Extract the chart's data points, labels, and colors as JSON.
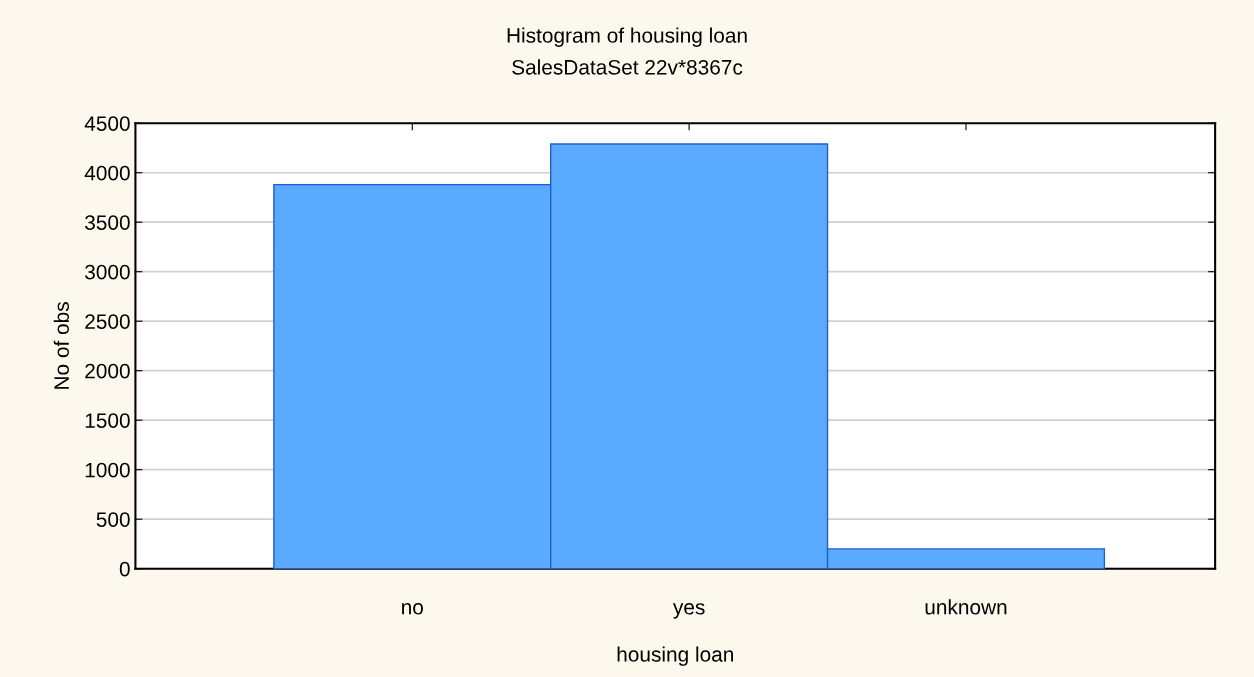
{
  "chart_data": {
    "type": "bar",
    "title": "Histogram of housing loan",
    "subtitle": "SalesDataSet 22v*8367c",
    "xlabel": "housing loan",
    "ylabel": "No of obs",
    "categories": [
      "no",
      "yes",
      "unknown"
    ],
    "values": [
      3880,
      4290,
      200
    ],
    "color": "#5aaaff",
    "ylim": [
      0,
      4500
    ],
    "yticks": [
      0,
      500,
      1000,
      1500,
      2000,
      2500,
      3000,
      3500,
      4000,
      4500
    ],
    "grid": "y"
  }
}
